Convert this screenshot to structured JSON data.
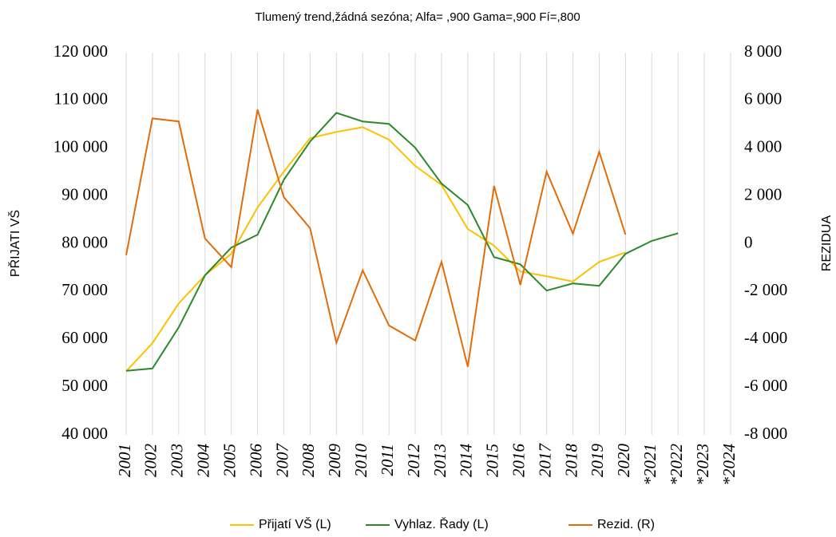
{
  "chart_data": {
    "type": "line",
    "title": "Tlumený trend,žádná sezóna; Alfa=   ,900 Gama=,900 Fí=,800",
    "y_label": "PŘIJATI VŠ",
    "y2_label": "REZIDUA",
    "categories": [
      "2001",
      "2002",
      "2003",
      "2004",
      "2005",
      "2006",
      "2007",
      "2008",
      "2009",
      "2010",
      "2011",
      "2012",
      "2013",
      "2014",
      "2015",
      "2016",
      "2017",
      "2018",
      "2019",
      "2020",
      "*2021",
      "*2022",
      "*2023",
      "*2024"
    ],
    "series": [
      {
        "name": "Přijatí VŠ (L)",
        "color": "#ffc000",
        "values": [
          53300,
          59200,
          67500,
          73400,
          77900,
          87600,
          95100,
          102100,
          103400,
          104400,
          101800,
          96300,
          92300,
          83100,
          79600,
          74200,
          73200,
          72100,
          76200,
          78200,
          null,
          null,
          null,
          null
        ]
      },
      {
        "name": "Vyhlaz. Řady (L)",
        "color": "#2a8a2a",
        "values": [
          53400,
          53900,
          62500,
          73400,
          79200,
          81900,
          93400,
          101400,
          107400,
          105600,
          105100,
          100100,
          92600,
          88100,
          77200,
          75700,
          70200,
          71700,
          71200,
          77900,
          80600,
          82200,
          null,
          null
        ]
      },
      {
        "name": "Rezid. (R)",
        "color": "#e36c0a",
        "axis": "y2",
        "values": [
          -480,
          5250,
          5120,
          220,
          -980,
          5620,
          1950,
          650,
          -4150,
          -1110,
          -3420,
          -4050,
          -750,
          -5150,
          2420,
          -1720,
          3020,
          420,
          3850,
          380,
          null,
          null,
          null,
          null
        ]
      }
    ],
    "ylim": [
      40000,
      120000
    ],
    "yticks": [
      {
        "value": 40000,
        "label": "40 000"
      },
      {
        "value": 50000,
        "label": "50 000"
      },
      {
        "value": 60000,
        "label": "60 000"
      },
      {
        "value": 70000,
        "label": "70 000"
      },
      {
        "value": 80000,
        "label": "80 000"
      },
      {
        "value": 90000,
        "label": "90 000"
      },
      {
        "value": 100000,
        "label": "100 000"
      },
      {
        "value": 110000,
        "label": "110 000"
      },
      {
        "value": 120000,
        "label": "120 000"
      }
    ],
    "y2lim": [
      -8000,
      8000
    ],
    "y2ticks": [
      {
        "value": -8000,
        "label": "-8 000"
      },
      {
        "value": -6000,
        "label": "-6 000"
      },
      {
        "value": -4000,
        "label": "-4 000"
      },
      {
        "value": -2000,
        "label": "-2 000"
      },
      0,
      {
        "value": 2000,
        "label": "2 000"
      },
      {
        "value": 4000,
        "label": "4 000"
      },
      {
        "value": 6000,
        "label": "6 000"
      },
      {
        "value": 8000,
        "label": "8 000"
      }
    ],
    "grid": true,
    "legend": "bottom"
  }
}
